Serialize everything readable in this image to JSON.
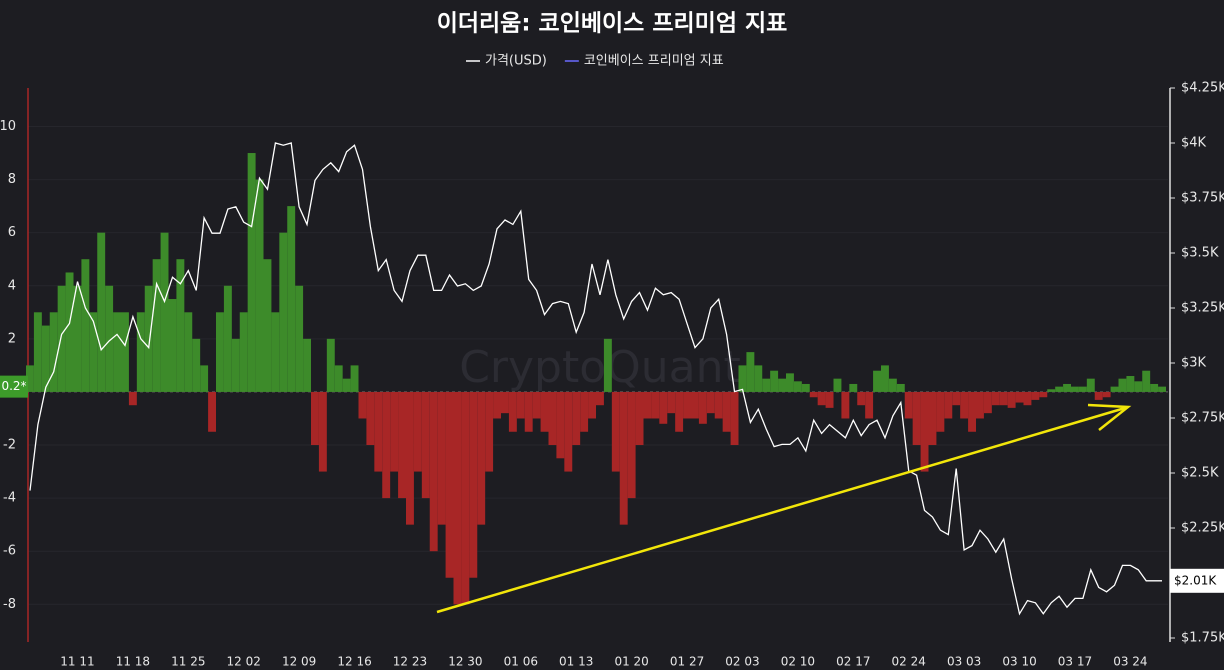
{
  "chart_data": {
    "type": "bar-line",
    "title": "이더리움: 코인베이스 프리미엄 지표",
    "watermark": "CryptoQuant",
    "categories": [
      null,
      null,
      null,
      null,
      null,
      null,
      "11 11",
      null,
      null,
      null,
      null,
      null,
      null,
      "11 18",
      null,
      null,
      null,
      null,
      null,
      null,
      "11 25",
      null,
      null,
      null,
      null,
      null,
      null,
      "12 02",
      null,
      null,
      null,
      null,
      null,
      null,
      "12 09",
      null,
      null,
      null,
      null,
      null,
      null,
      "12 16",
      null,
      null,
      null,
      null,
      null,
      null,
      "12 23",
      null,
      null,
      null,
      null,
      null,
      null,
      "12 30",
      null,
      null,
      null,
      null,
      null,
      null,
      "01 06",
      null,
      null,
      null,
      null,
      null,
      null,
      "01 13",
      null,
      null,
      null,
      null,
      null,
      null,
      "01 20",
      null,
      null,
      null,
      null,
      null,
      null,
      "01 27",
      null,
      null,
      null,
      null,
      null,
      null,
      "02 03",
      null,
      null,
      null,
      null,
      null,
      null,
      "02 10",
      null,
      null,
      null,
      null,
      null,
      null,
      "02 17",
      null,
      null,
      null,
      null,
      null,
      null,
      "02 24",
      null,
      null,
      null,
      null,
      null,
      null,
      "03 03",
      null,
      null,
      null,
      null,
      null,
      null,
      "03 10",
      null,
      null,
      null,
      null,
      null,
      null,
      "03 17",
      null,
      null,
      null,
      null,
      null,
      null,
      "03 24",
      null,
      null,
      null,
      null
    ],
    "series": [
      {
        "name": "가격(USD)",
        "color": "#ffffff",
        "axis": "y2",
        "kind": "line",
        "values": [
          2420,
          2720,
          2890,
          2960,
          3130,
          3180,
          3370,
          3250,
          3190,
          3060,
          3100,
          3130,
          3080,
          3210,
          3110,
          3070,
          3360,
          3280,
          3390,
          3360,
          3420,
          3330,
          3660,
          3590,
          3590,
          3700,
          3710,
          3640,
          3620,
          3840,
          3790,
          4000,
          3990,
          4000,
          3710,
          3630,
          3830,
          3880,
          3910,
          3870,
          3960,
          3990,
          3880,
          3620,
          3420,
          3470,
          3330,
          3280,
          3420,
          3490,
          3490,
          3330,
          3330,
          3400,
          3350,
          3360,
          3330,
          3350,
          3450,
          3610,
          3650,
          3630,
          3690,
          3380,
          3330,
          3220,
          3270,
          3280,
          3270,
          3140,
          3230,
          3450,
          3310,
          3470,
          3310,
          3200,
          3280,
          3320,
          3240,
          3340,
          3310,
          3320,
          3290,
          3180,
          3070,
          3110,
          3250,
          3290,
          3130,
          2870,
          2880,
          2730,
          2790,
          2700,
          2620,
          2630,
          2630,
          2660,
          2600,
          2740,
          2680,
          2720,
          2690,
          2660,
          2740,
          2670,
          2720,
          2740,
          2660,
          2760,
          2820,
          2510,
          2490,
          2330,
          2300,
          2240,
          2220,
          2520,
          2150,
          2170,
          2240,
          2200,
          2140,
          2200,
          2020,
          1860,
          1920,
          1910,
          1860,
          1910,
          1940,
          1890,
          1930,
          1930,
          2060,
          1980,
          1960,
          1990,
          2080,
          2080,
          2060,
          2010,
          2010,
          2010
        ]
      },
      {
        "name": "코인베이스 프리미엄 지표",
        "color": "#6b6bff",
        "kind": "bar",
        "positive_color": "#3d8b2a",
        "negative_color": "#a82626",
        "values": [
          1,
          3,
          2.5,
          3,
          4,
          4.5,
          4,
          5,
          3,
          6,
          4,
          3,
          3,
          -0.5,
          3,
          4,
          5,
          6,
          3.5,
          5,
          3,
          2,
          1,
          -1.5,
          3,
          4,
          2,
          3,
          9,
          8,
          5,
          3,
          6,
          7,
          4,
          2,
          -2,
          -3,
          2,
          1,
          0.5,
          1,
          -1,
          -2,
          -3,
          -4,
          -3,
          -4,
          -5,
          -3,
          -4,
          -6,
          -5,
          -7,
          -8,
          -8,
          -7,
          -5,
          -3,
          -1,
          -0.8,
          -1.5,
          -1,
          -1.5,
          -1,
          -1.5,
          -2,
          -2.5,
          -3,
          -2,
          -1.5,
          -1,
          -0.5,
          2,
          -3,
          -5,
          -4,
          -2,
          -1,
          -1,
          -1.2,
          -0.8,
          -1.5,
          -1,
          -1,
          -1.2,
          -0.8,
          -1,
          -1.5,
          -2,
          1,
          1.5,
          1,
          0.5,
          0.8,
          0.5,
          0.7,
          0.4,
          0.3,
          -0.2,
          -0.5,
          -0.6,
          0.5,
          -1,
          0.3,
          -0.5,
          -1,
          0.8,
          1,
          0.5,
          0.3,
          -1,
          -2,
          -3,
          -2,
          -1.5,
          -1,
          -0.5,
          -1,
          -1.5,
          -1,
          -0.8,
          -0.5,
          -0.5,
          -0.6,
          -0.4,
          -0.5,
          -0.3,
          -0.2,
          0.1,
          0.2,
          0.3,
          0.2,
          0.2,
          0.5,
          -0.3,
          -0.2,
          0.2,
          0.5,
          0.6,
          0.4,
          0.8,
          0.3,
          0.2
        ]
      }
    ],
    "ylim": [
      -9.27,
      11.45
    ],
    "yticks": [
      -8,
      -6,
      -4,
      -2,
      2,
      4,
      6,
      8,
      10
    ],
    "y2lim": [
      1750,
      4250
    ],
    "y2ticks": [
      {
        "value": 1750,
        "label": "$1.75K"
      },
      {
        "value": 2250,
        "label": "$2.25K"
      },
      {
        "value": 2500,
        "label": "$2.5K"
      },
      {
        "value": 2750,
        "label": "$2.75K"
      },
      {
        "value": 3000,
        "label": "$3K"
      },
      {
        "value": 3250,
        "label": "$3.25K"
      },
      {
        "value": 3500,
        "label": "$3.5K"
      },
      {
        "value": 3750,
        "label": "$3.75K"
      },
      {
        "value": 4000,
        "label": "$4K"
      },
      {
        "value": 4250,
        "label": "$4.25K"
      }
    ],
    "y_current": {
      "value": 0.2,
      "label": "0.2*"
    },
    "y2_current": {
      "value": 2010,
      "label": "$2.01K"
    },
    "grid": true
  }
}
